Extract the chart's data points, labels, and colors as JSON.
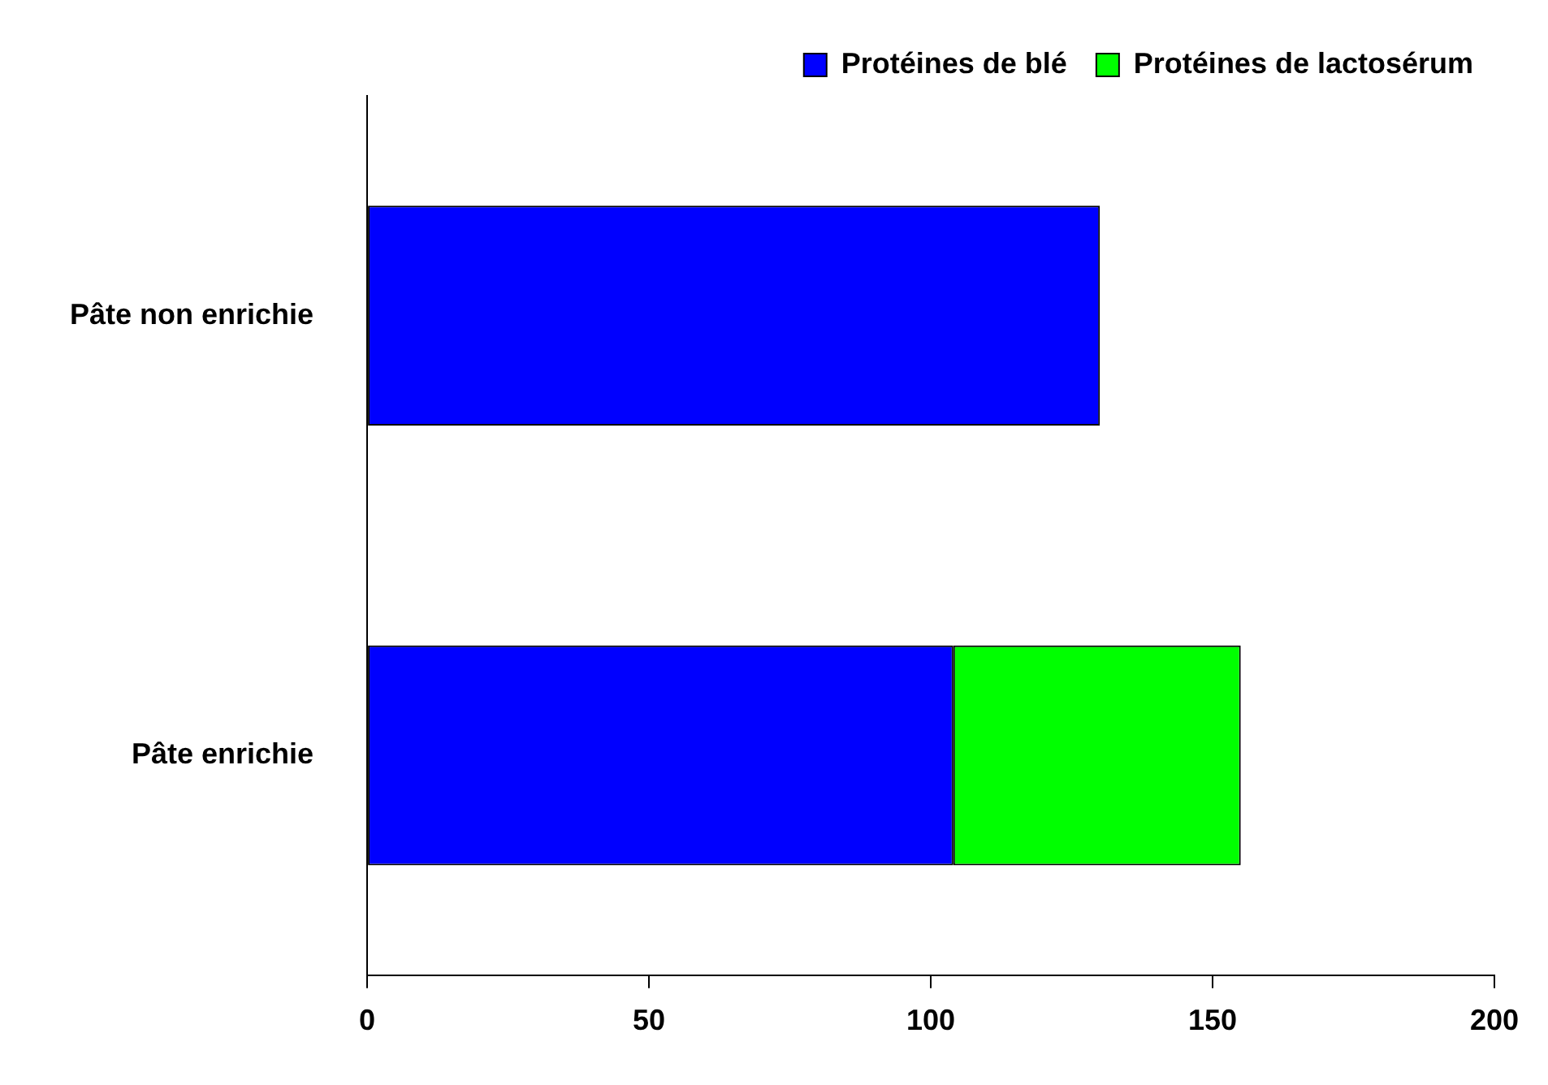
{
  "chart_data": {
    "type": "bar",
    "orientation": "horizontal",
    "stacked": true,
    "categories": [
      "Pâte non enrichie",
      "Pâte enrichie"
    ],
    "series": [
      {
        "name": "Protéines de blé",
        "color": "#0000ff",
        "values": [
          130,
          104
        ]
      },
      {
        "name": "Protéines de lactosérum",
        "color": "#00ff00",
        "values": [
          null,
          51
        ]
      }
    ],
    "xlim": [
      0,
      200
    ],
    "xticks": [
      0,
      50,
      100,
      150,
      200
    ],
    "grid": false,
    "legend": "top right"
  }
}
